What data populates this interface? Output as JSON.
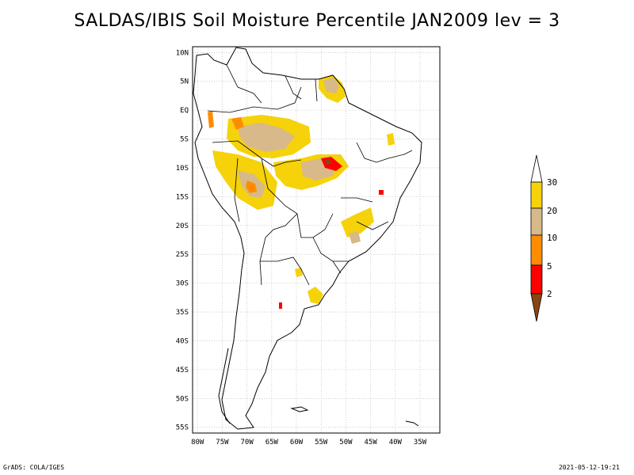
{
  "title": "SALDAS/IBIS Soil Moisture Percentile JAN2009 lev = 3",
  "map": {
    "lon_ticks": [
      "80W",
      "75W",
      "70W",
      "65W",
      "60W",
      "55W",
      "50W",
      "45W",
      "40W",
      "35W"
    ],
    "lat_ticks": [
      "10N",
      "5N",
      "EQ",
      "5S",
      "10S",
      "15S",
      "20S",
      "25S",
      "30S",
      "35S",
      "40S",
      "45S",
      "50S",
      "55S"
    ],
    "lon_range": [
      -81,
      -31
    ],
    "lat_range": [
      -56,
      11
    ],
    "grid": true
  },
  "legend": {
    "labels": [
      "30",
      "20",
      "10",
      "5",
      "2"
    ],
    "colors": {
      "above30": "#ffffff",
      "20-30": "#f5d20a",
      "10-20": "#d7b98a",
      "5-10": "#ff8c00",
      "2-5": "#ff0000",
      "below2": "#8b4513"
    }
  },
  "footer": {
    "left": "GrADS: COLA/IGES",
    "right": "2021-05-12-19:21"
  }
}
